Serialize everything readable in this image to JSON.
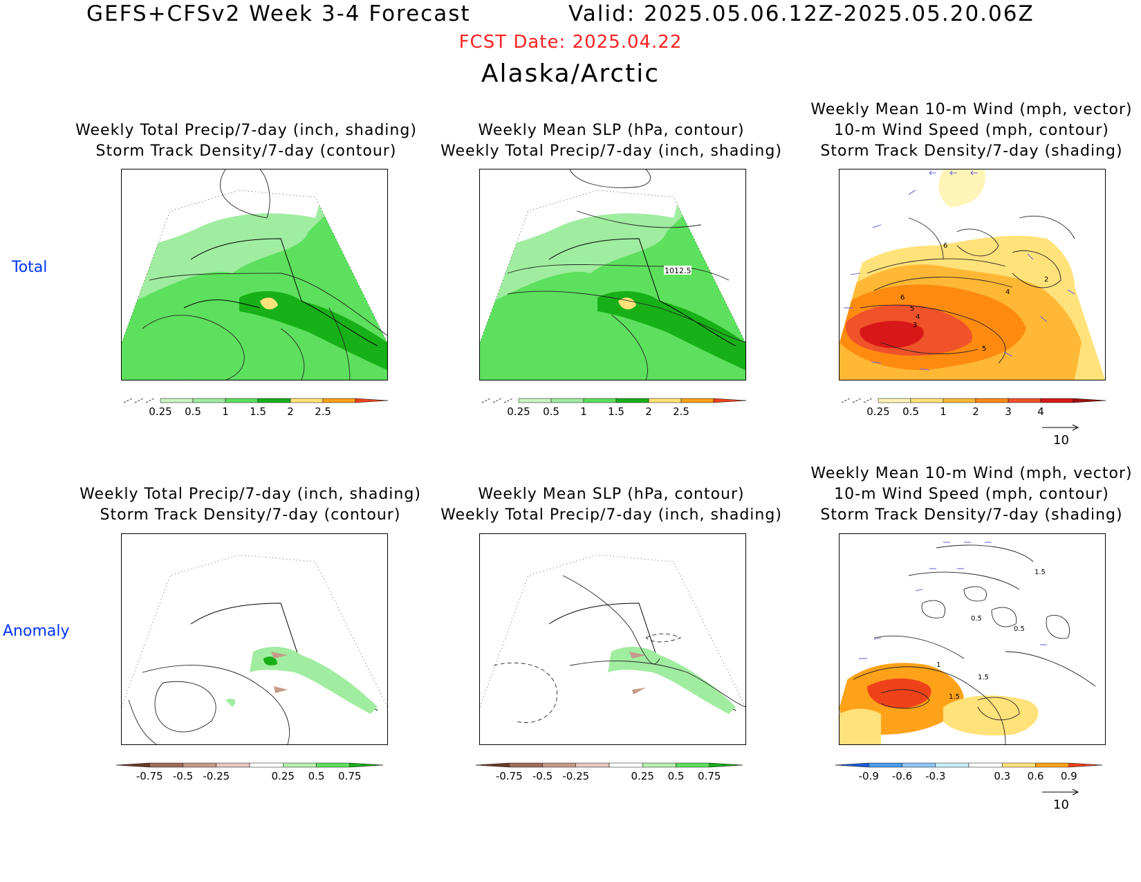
{
  "header": {
    "title": "GEFS+CFSv2 Week 3-4 Forecast",
    "valid": "Valid: 2025.05.06.12Z-2025.05.20.06Z",
    "fcst_date": "FCST Date: 2025.04.22",
    "region": "Alaska/Arctic"
  },
  "rows": [
    {
      "label": "Total"
    },
    {
      "label": "Anomaly"
    }
  ],
  "panel_titles": {
    "precip": [
      "Weekly Total Precip/7-day (inch, shading)",
      "Storm Track Density/7-day (contour)"
    ],
    "slp": [
      "Weekly Mean SLP (hPa, contour)",
      "Weekly Total Precip/7-day (inch, shading)"
    ],
    "wind": [
      "Weekly Mean 10-m Wind (mph, vector)",
      "10-m Wind Speed (mph, contour)",
      "Storm Track Density/7-day (shading)"
    ]
  },
  "colorbars": {
    "precip_total": {
      "labels": [
        "0.25",
        "0.5",
        "1",
        "1.5",
        "2",
        "2.5"
      ],
      "colors": [
        "#c8f5c0",
        "#a0eca0",
        "#5de05d",
        "#18b018",
        "#ffe27a",
        "#ffa21a",
        "#f0421a"
      ]
    },
    "track_total": {
      "labels": [
        "0.25",
        "0.5",
        "1",
        "2",
        "3",
        "4"
      ],
      "colors": [
        "#fff4b8",
        "#ffe27a",
        "#ffb836",
        "#ff8a10",
        "#f0522a",
        "#d81818",
        "#a01010"
      ]
    },
    "precip_anom": {
      "labels": [
        "-0.75",
        "-0.5",
        "-0.25",
        "0.25",
        "0.5",
        "0.75"
      ],
      "colors": [
        "#6b3a2a",
        "#a06c5a",
        "#c69a88",
        "#e8c8be",
        "#ffffff",
        "#b8f0b0",
        "#60e060",
        "#18b018"
      ]
    },
    "track_anom": {
      "labels": [
        "-0.9",
        "-0.6",
        "-0.3",
        "0.3",
        "0.6",
        "0.9"
      ],
      "colors": [
        "#1e5ad8",
        "#4c9cf0",
        "#8cc8f8",
        "#c8f0fa",
        "#ffffff",
        "#ffe27a",
        "#ffa21a",
        "#f0421a"
      ]
    }
  },
  "contour_labels": {
    "slp_total": "1012.5",
    "wind_total": [
      "6",
      "6",
      "5",
      "4",
      "3",
      "5",
      "4",
      "2"
    ],
    "wind_anom": [
      "1.5",
      "0.5",
      "1",
      "0.5",
      "1.5",
      "1.5"
    ]
  },
  "vector_ref": "10",
  "colors": {
    "title_red": "#ff2020",
    "row_label_blue": "#0033ff",
    "vector_blue": "#6a6ad8"
  }
}
